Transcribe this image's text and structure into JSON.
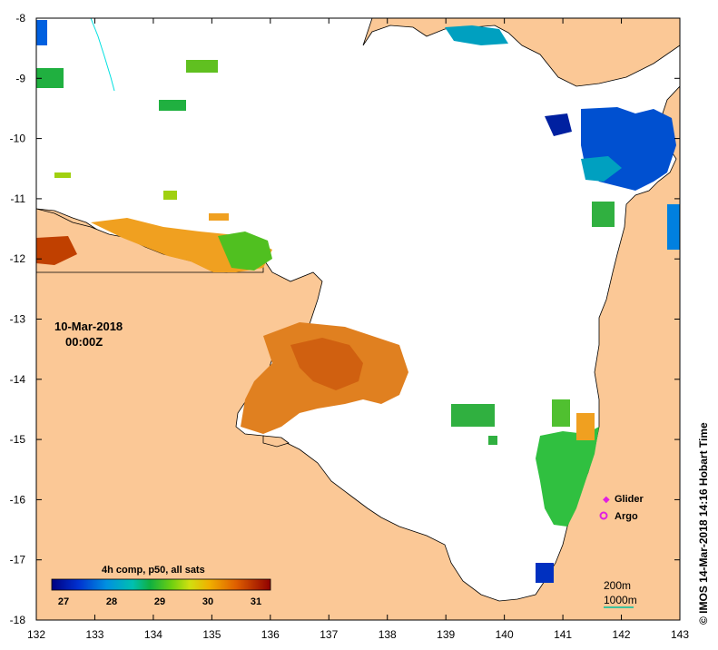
{
  "map": {
    "lon_ticks": [
      "132",
      "133",
      "134",
      "135",
      "136",
      "137",
      "138",
      "139",
      "140",
      "141",
      "142",
      "143"
    ],
    "lat_ticks": [
      "-8",
      "-9",
      "-10",
      "-11",
      "-12",
      "-13",
      "-14",
      "-15",
      "-16",
      "-17",
      "-18"
    ],
    "date_line1": "10-Mar-2018",
    "date_line2": "00:00Z",
    "legend": {
      "title": "4h comp, p50, all sats",
      "ticks": [
        "27",
        "28",
        "29",
        "30",
        "31"
      ]
    },
    "symbols": {
      "glider_label": "Glider",
      "argo_label": "Argo",
      "glider_color": "#e020e0",
      "argo_color": "#e020e0"
    },
    "isobaths": {
      "label_200": "200m",
      "label_1000": "1000m",
      "color_200": "#00e0e0",
      "color_1000": "#00a0a0"
    },
    "credit": "©  IMOS 14-Mar-2018 14:16 Hobart Time",
    "colors": {
      "land": "#fbc896",
      "water": "#ffffff"
    }
  }
}
